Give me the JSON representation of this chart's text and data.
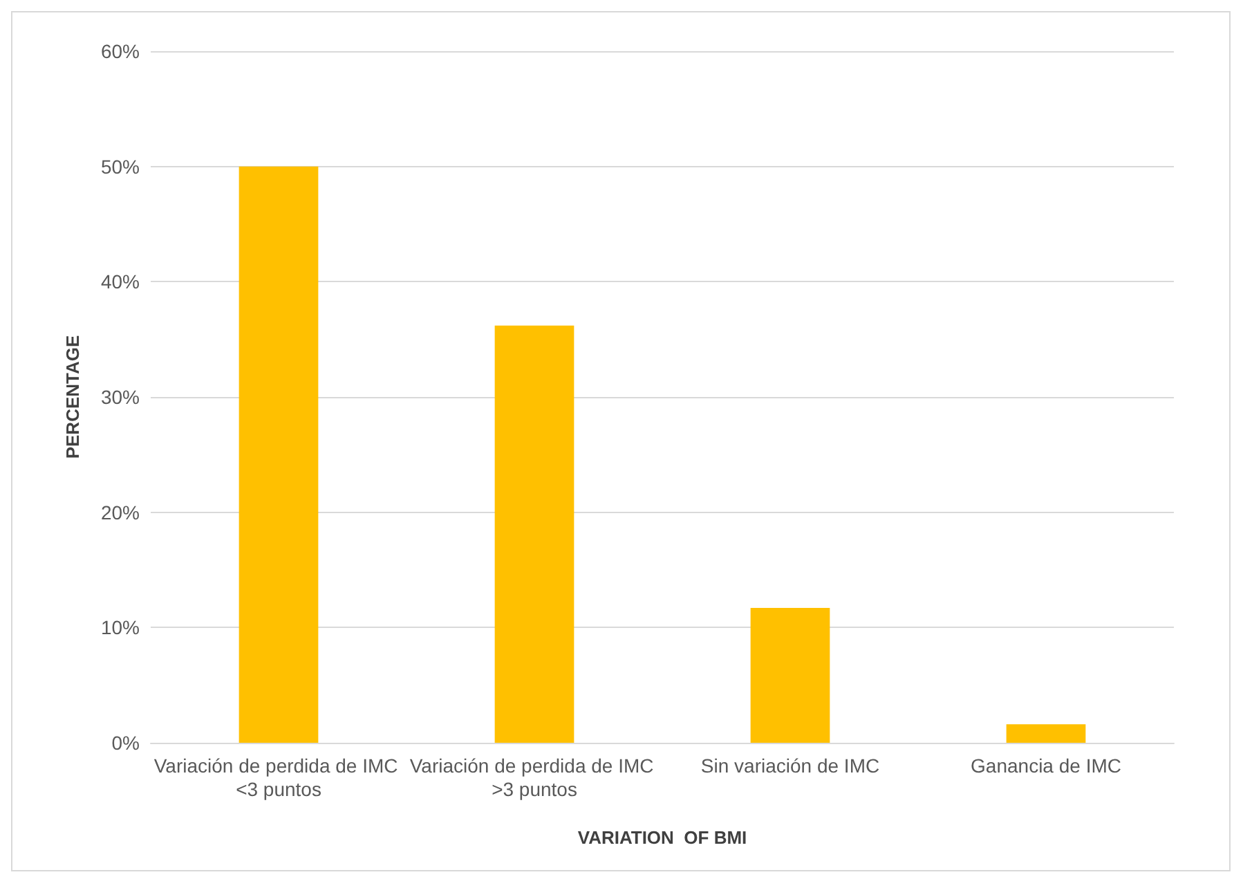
{
  "chart_data": {
    "type": "bar",
    "xlabel": "VARIATION  OF BMI",
    "ylabel": "PERCENTAGE",
    "categories": [
      "Variación de perdida de IMC <3 puntos",
      "Variación de perdida de IMC >3 puntos",
      "Sin variación de IMC",
      "Ganancia de IMC"
    ],
    "values": [
      50,
      36.2,
      11.7,
      1.6
    ],
    "color": "#ffc000",
    "ylim": [
      0,
      60
    ],
    "yticks": [
      {
        "value": 0,
        "label": "0%"
      },
      {
        "value": 10,
        "label": "10%"
      },
      {
        "value": 20,
        "label": "20%"
      },
      {
        "value": 30,
        "label": "30%"
      },
      {
        "value": 40,
        "label": "40%"
      },
      {
        "value": 50,
        "label": "50%"
      },
      {
        "value": 60,
        "label": "60%"
      }
    ],
    "grid": "y"
  }
}
